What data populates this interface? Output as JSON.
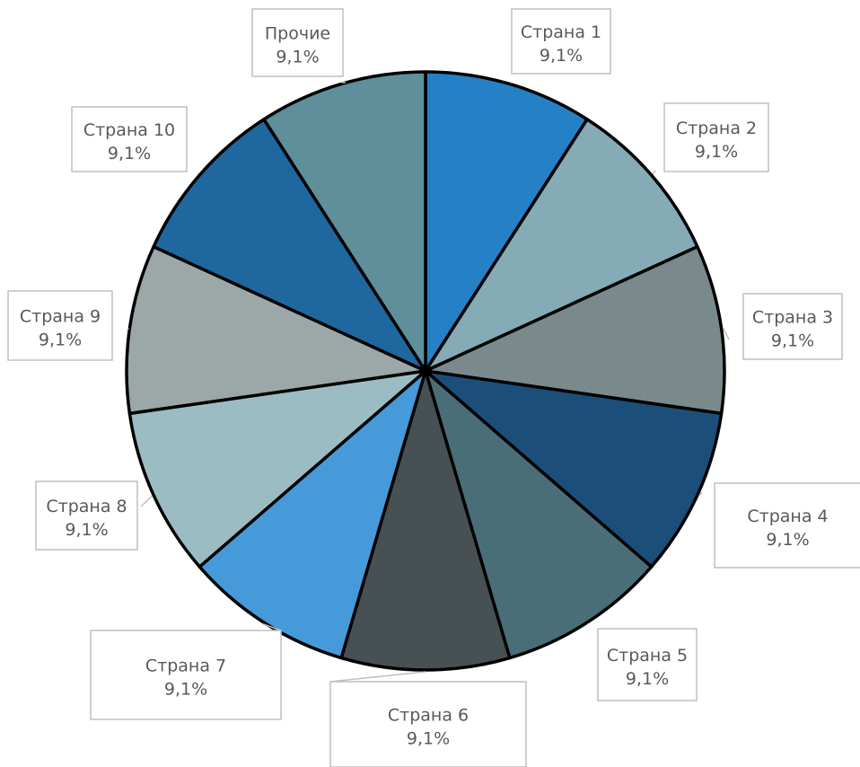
{
  "chart_data": {
    "type": "pie",
    "title": "",
    "series": [
      {
        "categories": [
          "Страна 1",
          "Страна 2",
          "Страна 3",
          "Страна 4",
          "Страна 5",
          "Страна 6",
          "Страна 7",
          "Страна 8",
          "Страна 9",
          "Страна 10",
          "Прочие"
        ],
        "values": [
          9.1,
          9.1,
          9.1,
          9.1,
          9.1,
          9.1,
          9.1,
          9.1,
          9.1,
          9.1,
          9.1
        ],
        "value_labels": [
          "9,1%",
          "9,1%",
          "9,1%",
          "9,1%",
          "9,1%",
          "9,1%",
          "9,1%",
          "9,1%",
          "9,1%",
          "9,1%",
          "9,1%"
        ]
      }
    ],
    "colors": [
      "#2680C6",
      "#85ACB6",
      "#7A8A8C",
      "#1B4F7A",
      "#4A6E78",
      "#475154",
      "#469AD9",
      "#9CBCC4",
      "#9CA7A8",
      "#1F679F",
      "#5E8F9B"
    ],
    "slice_border_color": "#000000",
    "label_box_color": "#BFBFBF",
    "legend": "none"
  }
}
